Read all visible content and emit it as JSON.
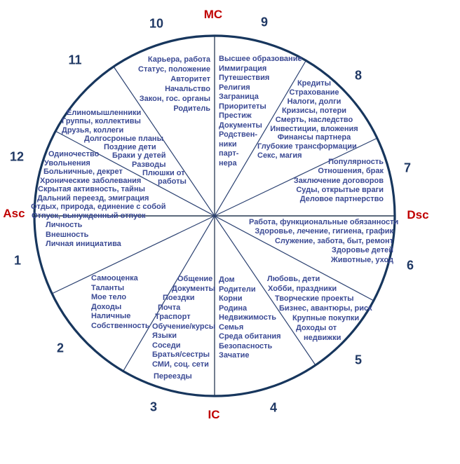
{
  "diagram_type": "astrological-houses-wheel",
  "colors": {
    "circle_navy": "#17365D",
    "number_navy": "#1F3864",
    "axis_red": "#C00000",
    "keyword_blue": "#3B4A94"
  },
  "axes": {
    "mc": "MC",
    "ic": "IC",
    "asc": "Asc",
    "dsc": "Dsc"
  },
  "houses": [
    {
      "number": "1",
      "items": [
        "Личность",
        "Внешность",
        "Личная инициатива"
      ]
    },
    {
      "number": "2",
      "items": [
        "Самооценка",
        "Таланты",
        "Мое тело",
        "Доходы",
        "Наличные",
        "Собственность"
      ]
    },
    {
      "number": "3",
      "items": [
        "Общение",
        "Документы",
        "Поездки",
        "Почта",
        "Траспорт",
        "Обучение/курсы",
        "Языки",
        "Соседи",
        "Братья/сестры",
        "СМИ, соц. сети",
        "Переезды"
      ]
    },
    {
      "number": "4",
      "items": [
        "Дом",
        "Родители",
        "Корни",
        "Родина",
        "Недвижимость",
        "Семья",
        "Среда обитания",
        "Безопасность",
        "Зачатие"
      ]
    },
    {
      "number": "5",
      "items": [
        "Любовь, дети",
        "Хобби, праздники",
        "Творческие проекты",
        "Бизнес, авантюры, риск",
        "Крупные покупки",
        "Доходы от",
        "недвижки"
      ]
    },
    {
      "number": "6",
      "items": [
        "Работа, функциональные обязанности",
        "Здоровье, лечение, гигиена, график",
        "Служение, забота, быт, ремонт",
        "Здоровье детей",
        "Животные, уход"
      ]
    },
    {
      "number": "7",
      "items": [
        "Популярность",
        "Отношения, брак",
        "Заключение договоров",
        "Суды, открытые враги",
        "Деловое партнерство"
      ]
    },
    {
      "number": "8",
      "items": [
        "Кредиты",
        "Страхование",
        "Налоги, долги",
        "Кризисы, потери",
        "Смерть, наследство",
        "Инвестиции, вложения",
        "Финансы партнера",
        "Глубокие трансформации",
        "Секс, магия"
      ]
    },
    {
      "number": "9",
      "items": [
        "Высшее образование",
        "Иммиграция",
        "Путешествия",
        "Религия",
        "Заграница",
        "Приоритеты",
        "Престиж",
        "Документы",
        "Родствен-",
        "ники",
        "парт-",
        "нера"
      ]
    },
    {
      "number": "10",
      "items": [
        "Карьера, работа",
        "Статус, положение",
        "Авторитет",
        "Начальство",
        "Закон, гос. органы",
        "Родитель"
      ]
    },
    {
      "number": "11",
      "items": [
        "Елиномышленники",
        "Группы, коллективы",
        "Друзья, коллеги",
        "Долгосроные планы",
        "Поздние дети",
        "Браки у детей",
        "Разводы",
        "Плюшки от",
        "работы"
      ]
    },
    {
      "number": "12",
      "items": [
        "Одиночество",
        "Увольнения",
        "Больничные, декрет",
        "Хронические заболевания",
        "Скрытая активность, тайны",
        "Дальний переезд, эмиграция",
        "Отдых, природа, единение с собой",
        "Отпуск, вынужденный отпуск"
      ]
    }
  ]
}
